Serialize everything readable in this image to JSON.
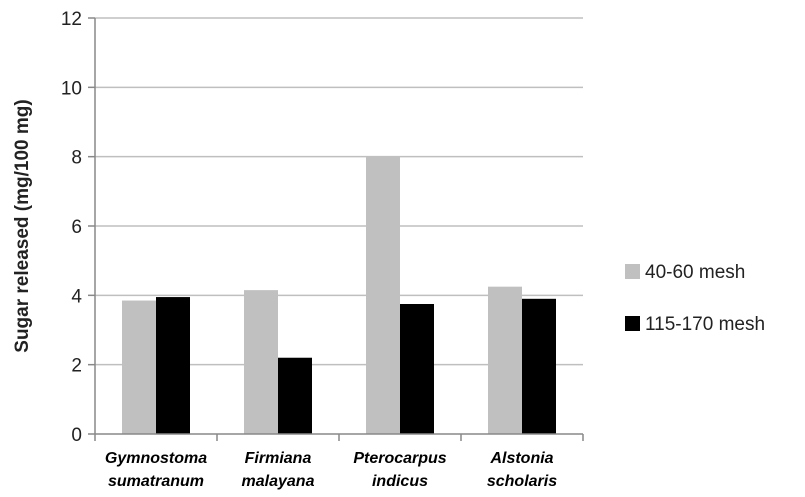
{
  "chart_data": {
    "type": "bar",
    "title": "",
    "xlabel": "",
    "ylabel": "Sugar released (mg/100 mg)",
    "ylim": [
      0,
      12
    ],
    "yticks": [
      0,
      2,
      4,
      6,
      8,
      10,
      12
    ],
    "grid": true,
    "legend_position": "right",
    "categories": [
      [
        "Gymnostoma",
        "sumatranum"
      ],
      [
        "Firmiana",
        "malayana"
      ],
      [
        "Pterocarpus",
        "indicus"
      ],
      [
        "Alstonia",
        "scholaris"
      ]
    ],
    "series": [
      {
        "name": "40-60 mesh",
        "color": "#c0c0c0",
        "values": [
          3.85,
          4.15,
          8.0,
          4.25
        ]
      },
      {
        "name": "115-170 mesh",
        "color": "#000000",
        "values": [
          3.95,
          2.2,
          3.75,
          3.9
        ]
      }
    ]
  }
}
